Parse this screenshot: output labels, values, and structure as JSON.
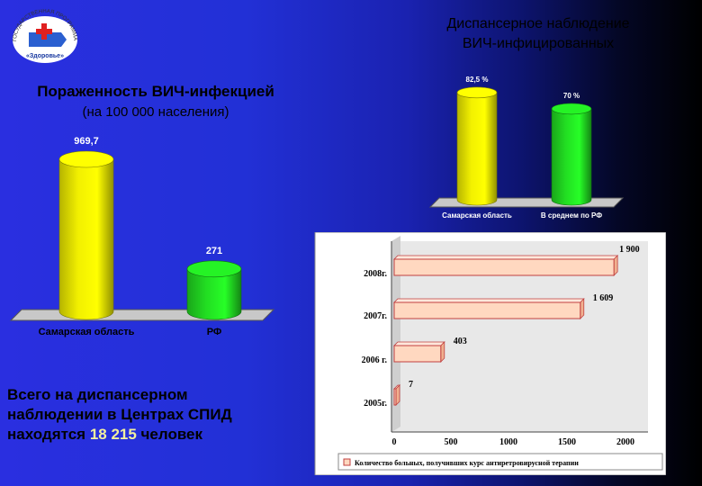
{
  "logo": {
    "text_top": "ГОСУДАРСТВЕННАЯ ПРОГРАММА",
    "text_bottom": "«Здоровье»"
  },
  "left_chart": {
    "title": "Пораженность ВИЧ-инфекцией",
    "subtitle": "(на 100 000 населения)"
  },
  "right_chart": {
    "title_line1": "Диспансерное наблюдение",
    "title_line2": "ВИЧ-инфицированных"
  },
  "summary": {
    "line1": "Всего на диспансерном",
    "line2": "наблюдении в Центрах СПИД",
    "prefix": "находятся ",
    "number": "18 215",
    "suffix": " человек"
  },
  "chart_data": [
    {
      "type": "bar",
      "title": "Пораженность ВИЧ-инфекцией (на 100 000 населения)",
      "categories": [
        "Самарская область",
        "РФ"
      ],
      "values": [
        969.7,
        271
      ],
      "value_labels": [
        "969,7",
        "271"
      ],
      "colors": [
        "#f2f000",
        "#22dd22"
      ],
      "ylim": [
        0,
        1050
      ]
    },
    {
      "type": "bar",
      "title": "Диспансерное наблюдение ВИЧ-инфицированных",
      "categories": [
        "Самарская область",
        "В среднем по РФ"
      ],
      "values": [
        82.5,
        70
      ],
      "value_labels": [
        "82,5 %",
        "70 %"
      ],
      "colors": [
        "#f2f000",
        "#22dd22"
      ],
      "ylim": [
        0,
        90
      ]
    },
    {
      "type": "bar",
      "orientation": "horizontal",
      "categories": [
        "2008г.",
        "2007г.",
        "2006 г.",
        "2005г."
      ],
      "values": [
        1900,
        1609,
        403,
        7
      ],
      "value_labels": [
        "1 900",
        "1 609",
        "403",
        "7"
      ],
      "xticks": [
        "0",
        "500",
        "1000",
        "1500",
        "2000"
      ],
      "xlim": [
        0,
        2000
      ],
      "legend": "Количество больных, получивших курс антиретровирусной терапии",
      "color": "#ffd8c0"
    }
  ]
}
